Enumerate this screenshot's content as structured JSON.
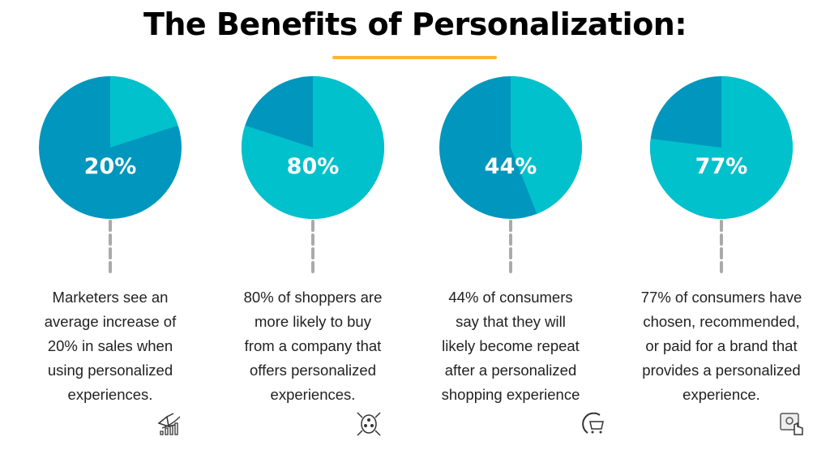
{
  "title": "The Benefits of Personalization:",
  "colors": {
    "highlight": "#00C1CC",
    "rest": "#0096BD",
    "accent": "#F7B733",
    "dash": "#AAAAAA"
  },
  "chart_data": {
    "type": "pie",
    "charts": [
      {
        "label": "20%",
        "value": 20,
        "description": [
          "Marketers see an",
          "average increase of",
          "20% in sales when",
          "using personalized",
          "experiences."
        ],
        "icon": "megaphone-growth-icon"
      },
      {
        "label": "80%",
        "value": 80,
        "description": [
          "80% of shoppers are",
          "more likely to buy",
          "from a company that",
          "offers personalized",
          "experiences."
        ],
        "icon": "customer-network-icon"
      },
      {
        "label": "44%",
        "value": 44,
        "description": [
          "44% of consumers",
          "say that they will",
          "likely become repeat",
          "after a personalized",
          "shopping experience"
        ],
        "icon": "repeat-cart-icon"
      },
      {
        "label": "77%",
        "value": 77,
        "description": [
          "77% of consumers have",
          "chosen, recommended,",
          "or paid for a brand that",
          "provides a personalized",
          "experience."
        ],
        "icon": "touch-settings-icon"
      }
    ]
  }
}
